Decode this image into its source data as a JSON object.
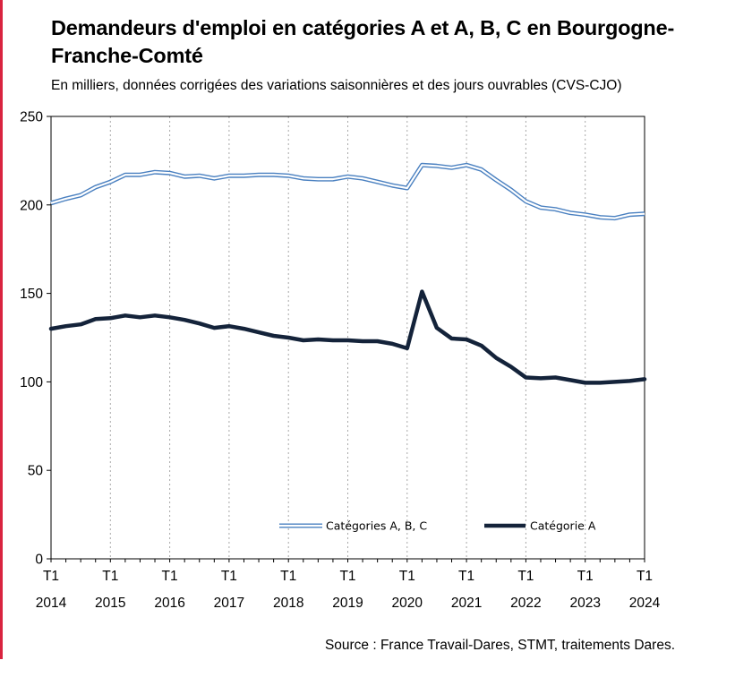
{
  "title": "Demandeurs d'emploi en catégories A et A, B, C en Bourgogne-Franche-Comté",
  "subtitle": "En milliers, données corrigées des variations saisonnières et des jours ouvrables (CVS-CJO)",
  "source": "Source : France Travail-Dares, STMT, traitements Dares.",
  "colors": {
    "accent_bar": "#d9233f",
    "series_abc": "#4a80c0",
    "series_a": "#14233a",
    "grid": "#a8a8a8"
  },
  "chart_data": {
    "type": "line",
    "title": "Demandeurs d'emploi en catégories A et A, B, C en Bourgogne-Franche-Comté",
    "subtitle": "En milliers, données corrigées des variations saisonnières et des jours ouvrables (CVS-CJO)",
    "xlabel": "",
    "ylabel": "",
    "ylim": [
      0,
      250
    ],
    "yticks": [
      0,
      50,
      100,
      150,
      200,
      250
    ],
    "x": [
      "T1 2014",
      "T2 2014",
      "T3 2014",
      "T4 2014",
      "T1 2015",
      "T2 2015",
      "T3 2015",
      "T4 2015",
      "T1 2016",
      "T2 2016",
      "T3 2016",
      "T4 2016",
      "T1 2017",
      "T2 2017",
      "T3 2017",
      "T4 2017",
      "T1 2018",
      "T2 2018",
      "T3 2018",
      "T4 2018",
      "T1 2019",
      "T2 2019",
      "T3 2019",
      "T4 2019",
      "T1 2020",
      "T2 2020",
      "T3 2020",
      "T4 2020",
      "T1 2021",
      "T2 2021",
      "T3 2021",
      "T4 2021",
      "T1 2022",
      "T2 2022",
      "T3 2022",
      "T4 2022",
      "T1 2023",
      "T2 2023",
      "T3 2023",
      "T4 2023",
      "T1 2024"
    ],
    "xticks": [
      {
        "top": "T1",
        "bottom": "2014"
      },
      {
        "top": "T1",
        "bottom": "2015"
      },
      {
        "top": "T1",
        "bottom": "2016"
      },
      {
        "top": "T1",
        "bottom": "2017"
      },
      {
        "top": "T1",
        "bottom": "2018"
      },
      {
        "top": "T1",
        "bottom": "2019"
      },
      {
        "top": "T1",
        "bottom": "2020"
      },
      {
        "top": "T1",
        "bottom": "2021"
      },
      {
        "top": "T1",
        "bottom": "2022"
      },
      {
        "top": "T1",
        "bottom": "2023"
      },
      {
        "top": "T1",
        "bottom": "2024"
      }
    ],
    "grid": "vertical dotted at T1 of each year",
    "legend_position": "bottom-center inside plot",
    "series": [
      {
        "name": "Catégories A, B, C",
        "style": "double-line",
        "values": [
          201,
          203.5,
          205.5,
          210,
          213,
          217,
          217,
          218.5,
          218,
          216,
          216.5,
          215,
          216.5,
          216.5,
          217,
          217,
          216.5,
          215,
          214.5,
          214.5,
          216,
          215,
          213,
          211,
          209.5,
          222.5,
          222,
          221,
          222.5,
          220,
          214,
          208.5,
          202,
          198.5,
          197.5,
          195.5,
          194.5,
          193,
          192.5,
          194.5,
          195
        ]
      },
      {
        "name": "Catégorie A",
        "style": "thick",
        "values": [
          130,
          131.5,
          132.5,
          135.5,
          136,
          137.5,
          136.5,
          137.5,
          136.5,
          135,
          133,
          130.5,
          131.5,
          130,
          128,
          126,
          125,
          123.5,
          124,
          123.5,
          123.5,
          123,
          123,
          121.5,
          119,
          151,
          130.5,
          124.5,
          124,
          120.5,
          113.5,
          108.5,
          102.5,
          102,
          102.5,
          101,
          99.5,
          99.5,
          100,
          100.5,
          101.5
        ]
      }
    ]
  }
}
